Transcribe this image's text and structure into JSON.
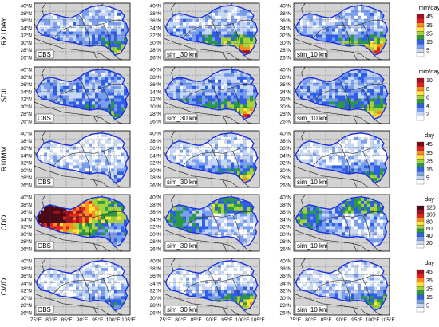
{
  "rows": [
    {
      "index": "RX1DAY",
      "unit": "mm/day",
      "levels": [
        "5",
        "15",
        "25",
        "35",
        "45"
      ],
      "colors": [
        "#ffffff",
        "#c6d8f5",
        "#7a9ff0",
        "#2f5ee8",
        "#2b9a46",
        "#a6d23c",
        "#ffe23a",
        "#ff8a1e",
        "#e8201e",
        "#a0101e"
      ]
    },
    {
      "index": "SDII",
      "unit": "mm/day",
      "levels": [
        "2",
        "4",
        "6",
        "8",
        "10"
      ],
      "colors": [
        "#ffffff",
        "#c6d8f5",
        "#7a9ff0",
        "#2f5ee8",
        "#2b9a46",
        "#a6d23c",
        "#ffe23a",
        "#ff8a1e",
        "#e8201e",
        "#a0101e"
      ]
    },
    {
      "index": "R10MM",
      "unit": "day",
      "levels": [
        "5",
        "15",
        "25",
        "35",
        "45"
      ],
      "colors": [
        "#ffffff",
        "#c6d8f5",
        "#7a9ff0",
        "#2f5ee8",
        "#2b9a46",
        "#a6d23c",
        "#ffe23a",
        "#ff8a1e",
        "#e8201e",
        "#7a0a14"
      ]
    },
    {
      "index": "CDD",
      "unit": "day",
      "levels": [
        "20",
        "40",
        "60",
        "80",
        "100",
        "120"
      ],
      "colors": [
        "#ffffff",
        "#c6d8f5",
        "#7a9ff0",
        "#2f5ee8",
        "#2b9a46",
        "#a6d23c",
        "#ffe23a",
        "#ff8a1e",
        "#e8201e",
        "#a0101e",
        "#4a0a14"
      ]
    },
    {
      "index": "CWD",
      "unit": "day",
      "levels": [
        "5",
        "15",
        "25",
        "35",
        "45"
      ],
      "colors": [
        "#ffffff",
        "#c6d8f5",
        "#7a9ff0",
        "#2f5ee8",
        "#2b9a46",
        "#a6d23c",
        "#ffe23a",
        "#ff8a1e",
        "#e8201e",
        "#a0101e"
      ]
    }
  ],
  "columns": [
    "OBS",
    "sim_30 km",
    "sim_10 km"
  ],
  "lat_labels": [
    "40°N",
    "38°N",
    "36°N",
    "34°N",
    "32°N",
    "30°N",
    "28°N",
    "26°N"
  ],
  "lon_labels": [
    "75°E",
    "80°E",
    "85°E",
    "90°E",
    "95°E",
    "100°E",
    "105°E"
  ],
  "map_colors": {
    "ocean_bg": "#d3d3d3",
    "boundary": "#1a2fe0",
    "grid": "#555555",
    "interior": "#2a2a2a"
  }
}
